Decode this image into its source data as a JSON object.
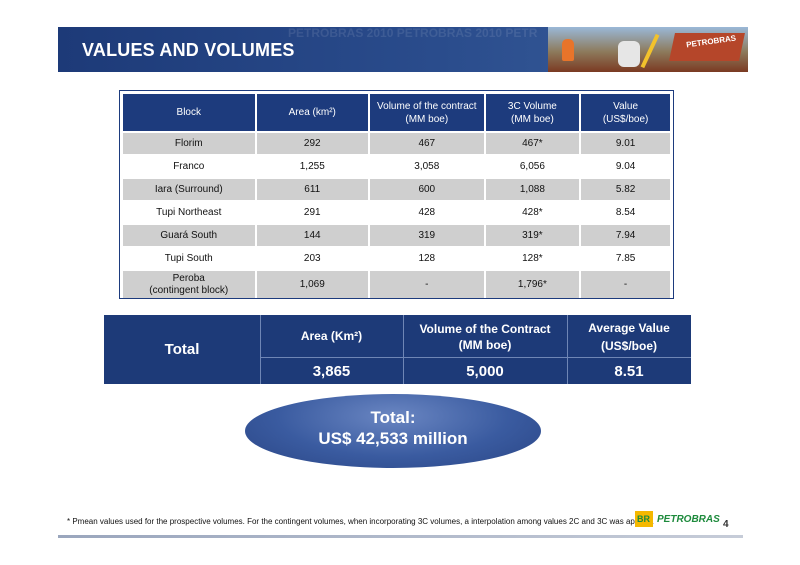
{
  "header": {
    "title": "VALUES AND VOLUMES",
    "watermark": "PETROBRAS 2010 PETROBRAS 2010 PETROBRAS",
    "ship_label": "PETROBRAS"
  },
  "blocks_table": {
    "headers": [
      "Block",
      "Area (km²)",
      "Volume of the contract\n(MM boe)",
      "3C Volume\n(MM boe)",
      "Value\n(US$/boe)"
    ],
    "rows": [
      [
        "Florim",
        "292",
        "467",
        "467*",
        "9.01"
      ],
      [
        "Franco",
        "1,255",
        "3,058",
        "6,056",
        "9.04"
      ],
      [
        "Iara (Surround)",
        "611",
        "600",
        "1,088",
        "5.82"
      ],
      [
        "Tupi Northeast",
        "291",
        "428",
        "428*",
        "8.54"
      ],
      [
        "Guará South",
        "144",
        "319",
        "319*",
        "7.94"
      ],
      [
        "Tupi South",
        "203",
        "128",
        "128*",
        "7.85"
      ],
      [
        "Peroba\n(contingent block)",
        "1,069",
        "-",
        "1,796*",
        "-"
      ]
    ]
  },
  "totals": {
    "label": "Total",
    "area_header": "Area (Km²)",
    "volume_header_1": "Volume of the Contract",
    "volume_header_2": "(MM boe)",
    "value_header_1": "Average Value",
    "value_header_2": "(US$/boe)",
    "area_value": "3,865",
    "volume_value": "5,000",
    "avg_value": "8.51"
  },
  "grand_total": {
    "line1": "Total:",
    "line2": "US$ 42,533 million"
  },
  "footnote": "* Pmean values used for the prospective volumes. For the contingent volumes, when incorporating 3C volumes, a interpolation among values 2C and 3C was applied.",
  "logo": {
    "mark": "BR",
    "name": "PETROBRAS"
  },
  "page_number": "4",
  "colors": {
    "navy": "#1d3a78",
    "gray_row": "#cfcfcf",
    "logo_green": "#1d8a3c",
    "logo_yellow": "#f5b800"
  }
}
